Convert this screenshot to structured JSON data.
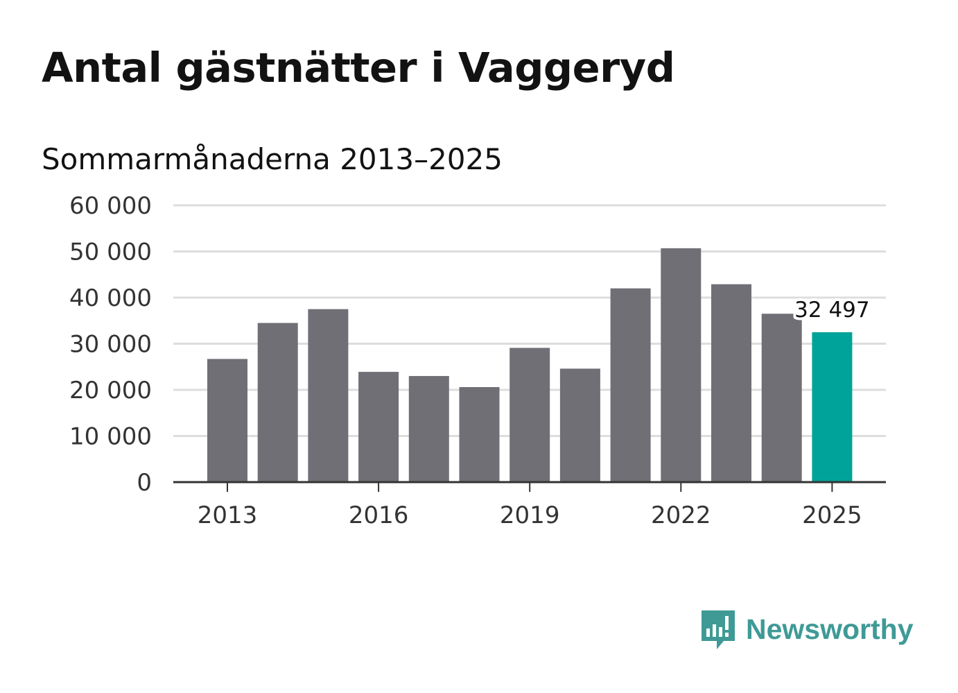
{
  "title": "Antal gästnätter i Vaggeryd",
  "subtitle": "Sommarmånaderna 2013–2025",
  "brand": {
    "name": "Newsworthy",
    "icon": "newsworthy-logo-icon",
    "color": "#3f9a96"
  },
  "colors": {
    "bar": "#706f76",
    "highlight": "#00a399",
    "grid": "#dddddd",
    "axis": "#333333"
  },
  "chart_data": {
    "type": "bar",
    "categories": [
      "2013",
      "2014",
      "2015",
      "2016",
      "2017",
      "2018",
      "2019",
      "2020",
      "2021",
      "2022",
      "2023",
      "2024",
      "2025"
    ],
    "values": [
      26700,
      34500,
      37500,
      23900,
      23000,
      20600,
      29100,
      24600,
      42000,
      50700,
      42900,
      36500,
      32497
    ],
    "highlight_index": 12,
    "highlight_label": "32 497",
    "ylim": [
      0,
      60000
    ],
    "yticks": [
      0,
      10000,
      20000,
      30000,
      40000,
      50000,
      60000
    ],
    "ytick_labels": [
      "0",
      "10 000",
      "20 000",
      "30 000",
      "40 000",
      "50 000",
      "60 000"
    ],
    "xtick_labels": [
      "2013",
      "2016",
      "2019",
      "2022",
      "2025"
    ],
    "grid": true,
    "legend": "none"
  }
}
